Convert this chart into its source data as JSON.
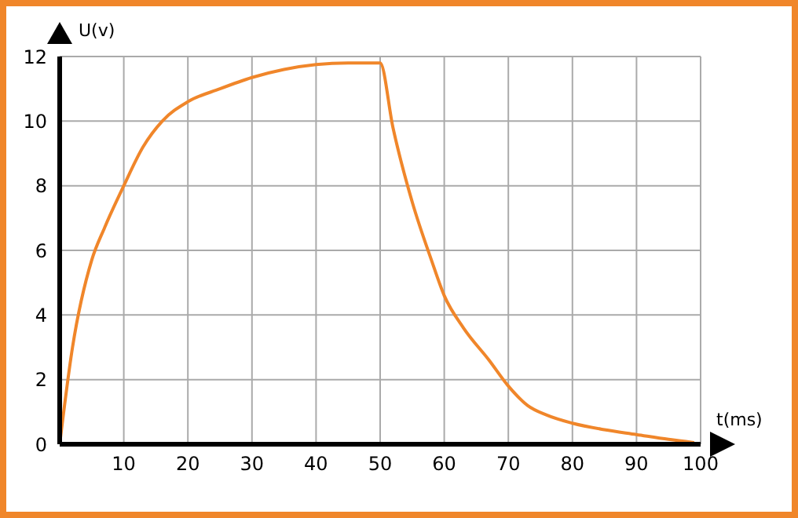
{
  "chart_data": {
    "type": "line",
    "xlabel": "t(ms)",
    "ylabel": "U(v)",
    "x": [
      0,
      2,
      5,
      7,
      10,
      13,
      16,
      20,
      25,
      30,
      35,
      40,
      45,
      50,
      52,
      55,
      58,
      60,
      63,
      67,
      70,
      73,
      76,
      80,
      85,
      90,
      95,
      99
    ],
    "series": [
      {
        "color": "#f0862a",
        "values": [
          0,
          3,
          5.7,
          6.7,
          8,
          9.2,
          10,
          10.6,
          11,
          11.35,
          11.6,
          11.75,
          11.8,
          11.8,
          9.8,
          7.5,
          5.7,
          4.6,
          3.6,
          2.6,
          1.8,
          1.2,
          0.9,
          0.65,
          0.45,
          0.3,
          0.15,
          0.05
        ]
      }
    ],
    "xlim": [
      0,
      100
    ],
    "xticks": [
      10,
      20,
      30,
      40,
      50,
      60,
      70,
      80,
      90,
      100
    ],
    "ylim": [
      0,
      12
    ],
    "yticks": [
      0,
      2,
      4,
      6,
      8,
      10,
      12
    ],
    "grid": true,
    "marker": "none",
    "line_style": "solid"
  }
}
